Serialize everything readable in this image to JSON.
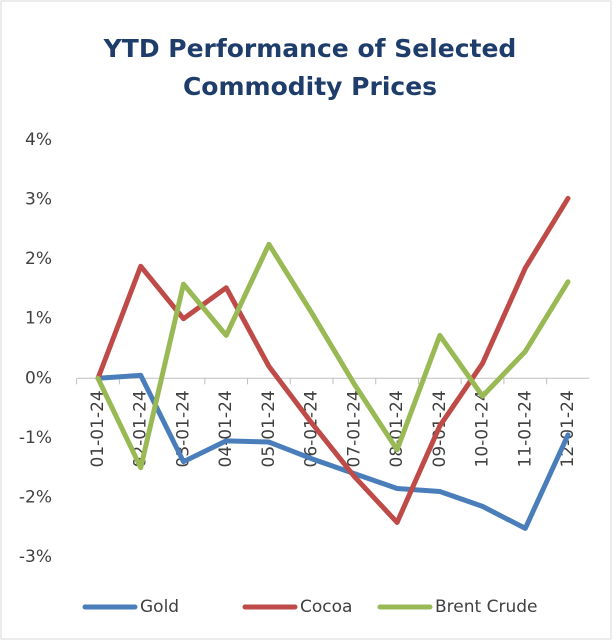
{
  "chart_data": {
    "type": "line",
    "title": [
      "YTD Performance of Selected",
      "Commodity Prices"
    ],
    "categories": [
      "01-01-24",
      "02-01-24",
      "03-01-24",
      "04-01-24",
      "05-01-24",
      "06-01-24",
      "07-01-24",
      "08-01-24",
      "09-01-24",
      "10-01-24",
      "11-01-24",
      "12-01-24"
    ],
    "series": [
      {
        "name": "Gold",
        "color": "#4a7ebb",
        "values": [
          0,
          0.05,
          -1.4,
          -1.05,
          -1.07,
          -1.35,
          -1.6,
          -1.85,
          -1.9,
          -2.15,
          -2.52,
          -0.95
        ]
      },
      {
        "name": "Cocoa",
        "color": "#be4b48",
        "values": [
          0,
          1.88,
          1.0,
          1.52,
          0.2,
          -0.75,
          -1.65,
          -2.42,
          -0.8,
          0.25,
          1.85,
          3.02
        ]
      },
      {
        "name": "Brent Crude",
        "color": "#98b954",
        "values": [
          0,
          -1.5,
          1.58,
          0.72,
          2.25,
          1.1,
          -0.1,
          -1.2,
          0.72,
          -0.3,
          0.45,
          1.62
        ]
      }
    ],
    "ylim": [
      -3,
      4
    ],
    "yticks": [
      {
        "value": -3,
        "label": "-3%"
      },
      {
        "value": -2,
        "label": "-2%"
      },
      {
        "value": -1,
        "label": "-1%"
      },
      {
        "value": 0,
        "label": "0%"
      },
      {
        "value": 1,
        "label": "1%"
      },
      {
        "value": 2,
        "label": "2%"
      },
      {
        "value": 3,
        "label": "3%"
      },
      {
        "value": 4,
        "label": "4%"
      }
    ],
    "legend": "bottom"
  }
}
